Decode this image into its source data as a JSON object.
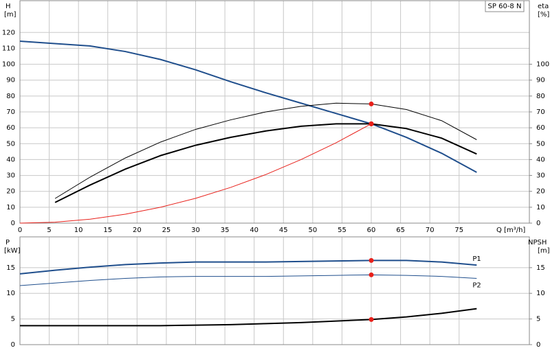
{
  "chart_data": [
    {
      "type": "line",
      "legend_box": "SP 60-8 N",
      "ylabel": "H",
      "yunit": "[m]",
      "y2label": "eta",
      "y2unit": "[%]",
      "xlabel": "Q [m³/h]",
      "xlim": [
        0,
        87
      ],
      "xticks": [
        0,
        5,
        10,
        15,
        20,
        25,
        30,
        35,
        40,
        45,
        50,
        55,
        60,
        65,
        70,
        75
      ],
      "ylim": [
        0,
        140
      ],
      "yticks": [
        0,
        10,
        20,
        30,
        40,
        50,
        60,
        70,
        80,
        90,
        100,
        110,
        120
      ],
      "y2lim": [
        0,
        140
      ],
      "y2ticks": [
        0,
        10,
        20,
        30,
        40,
        50,
        60,
        70,
        80,
        90,
        100
      ],
      "grid": true,
      "duty_point_x": 60,
      "duty_point_color": "#e8201a",
      "series": [
        {
          "color": "#1f4e8c",
          "width": 2,
          "axis": "y",
          "x": [
            0,
            6,
            12,
            18,
            24,
            30,
            36,
            42,
            48,
            54,
            60,
            66,
            72,
            78
          ],
          "values": [
            114.5,
            113,
            111.5,
            108,
            103,
            96.5,
            89,
            82,
            75.5,
            69,
            62.5,
            54,
            44,
            32
          ]
        },
        {
          "color": "#000000",
          "width": 1,
          "axis": "y2",
          "x": [
            6,
            12,
            18,
            24,
            30,
            36,
            42,
            48,
            54,
            60,
            66,
            72,
            78
          ],
          "values": [
            15.5,
            29,
            41,
            51,
            59,
            65,
            70,
            73.5,
            75.5,
            75,
            71.5,
            64.5,
            52.5
          ]
        },
        {
          "color": "#000000",
          "width": 2,
          "axis": "y2",
          "x": [
            6,
            12,
            18,
            24,
            30,
            36,
            42,
            48,
            54,
            60,
            66,
            72,
            78
          ],
          "values": [
            13,
            24,
            34,
            42.5,
            49,
            54,
            58,
            61,
            62.5,
            62.5,
            59.5,
            53.5,
            43.5
          ]
        },
        {
          "color": "#e8201a",
          "width": 1,
          "axis": "y",
          "x": [
            0,
            6,
            12,
            18,
            24,
            30,
            36,
            42,
            48,
            54,
            60
          ],
          "values": [
            0,
            0.6,
            2.5,
            5.6,
            10,
            15.6,
            22.5,
            30.6,
            40,
            50.6,
            62.5
          ]
        }
      ]
    },
    {
      "type": "line",
      "ylabel": "P",
      "yunit": "[kW]",
      "y2label": "NPSH",
      "y2unit": "[m]",
      "xlim": [
        0,
        87
      ],
      "xticks": [
        0,
        5,
        10,
        15,
        20,
        25,
        30,
        35,
        40,
        45,
        50,
        55,
        60,
        65,
        70,
        75
      ],
      "ylim": [
        0,
        21
      ],
      "yticks": [
        0,
        5,
        10,
        15
      ],
      "y2lim": [
        0,
        21
      ],
      "y2ticks": [
        0,
        5,
        10,
        15
      ],
      "grid": true,
      "duty_point_x": 60,
      "duty_point_color": "#e8201a",
      "series": [
        {
          "name": "P1",
          "color": "#1f4e8c",
          "width": 2,
          "axis": "y",
          "x": [
            0,
            6,
            12,
            18,
            24,
            30,
            36,
            42,
            48,
            54,
            60,
            66,
            72,
            78
          ],
          "values": [
            13.8,
            14.5,
            15.1,
            15.6,
            15.9,
            16.1,
            16.1,
            16.1,
            16.2,
            16.3,
            16.4,
            16.4,
            16.1,
            15.5
          ]
        },
        {
          "name": "P2",
          "color": "#1f4e8c",
          "width": 1,
          "axis": "y",
          "x": [
            0,
            6,
            12,
            18,
            24,
            30,
            36,
            42,
            48,
            54,
            60,
            66,
            72,
            78
          ],
          "values": [
            11.5,
            12,
            12.5,
            12.9,
            13.2,
            13.3,
            13.3,
            13.3,
            13.4,
            13.5,
            13.6,
            13.5,
            13.3,
            12.9
          ]
        },
        {
          "color": "#000000",
          "width": 2,
          "axis": "y2",
          "x": [
            0,
            6,
            12,
            18,
            24,
            30,
            36,
            42,
            48,
            54,
            60,
            66,
            72,
            78
          ],
          "values": [
            3.7,
            3.7,
            3.7,
            3.7,
            3.7,
            3.8,
            3.9,
            4.1,
            4.3,
            4.6,
            4.9,
            5.4,
            6.1,
            7.0
          ]
        }
      ]
    }
  ]
}
